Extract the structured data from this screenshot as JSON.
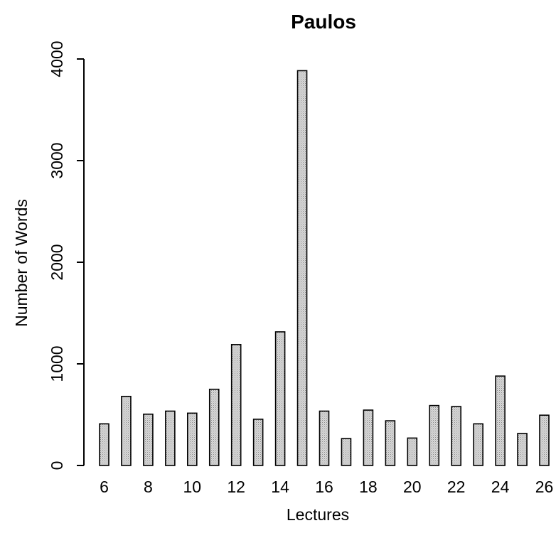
{
  "chart_data": {
    "type": "bar",
    "title": "Paulos",
    "xlabel": "Lectures",
    "ylabel": "Number of Words",
    "categories": [
      6,
      7,
      8,
      9,
      10,
      11,
      12,
      13,
      14,
      15,
      16,
      17,
      18,
      19,
      20,
      21,
      22,
      23,
      24,
      25,
      26
    ],
    "values": [
      410,
      680,
      505,
      535,
      515,
      750,
      1190,
      455,
      1315,
      3885,
      535,
      265,
      545,
      440,
      270,
      590,
      580,
      410,
      880,
      315,
      495
    ],
    "x_tick_labels": [
      "6",
      "8",
      "10",
      "12",
      "14",
      "16",
      "18",
      "20",
      "22",
      "24",
      "26"
    ],
    "y_ticks": [
      0,
      1000,
      2000,
      3000,
      4000
    ],
    "y_tick_labels": [
      "0",
      "1000",
      "2000",
      "3000",
      "4000"
    ],
    "ylim": [
      0,
      4000
    ],
    "grid": false,
    "legend": "none",
    "bar_color": "#c8c8c8",
    "edge_color": "#000000"
  }
}
